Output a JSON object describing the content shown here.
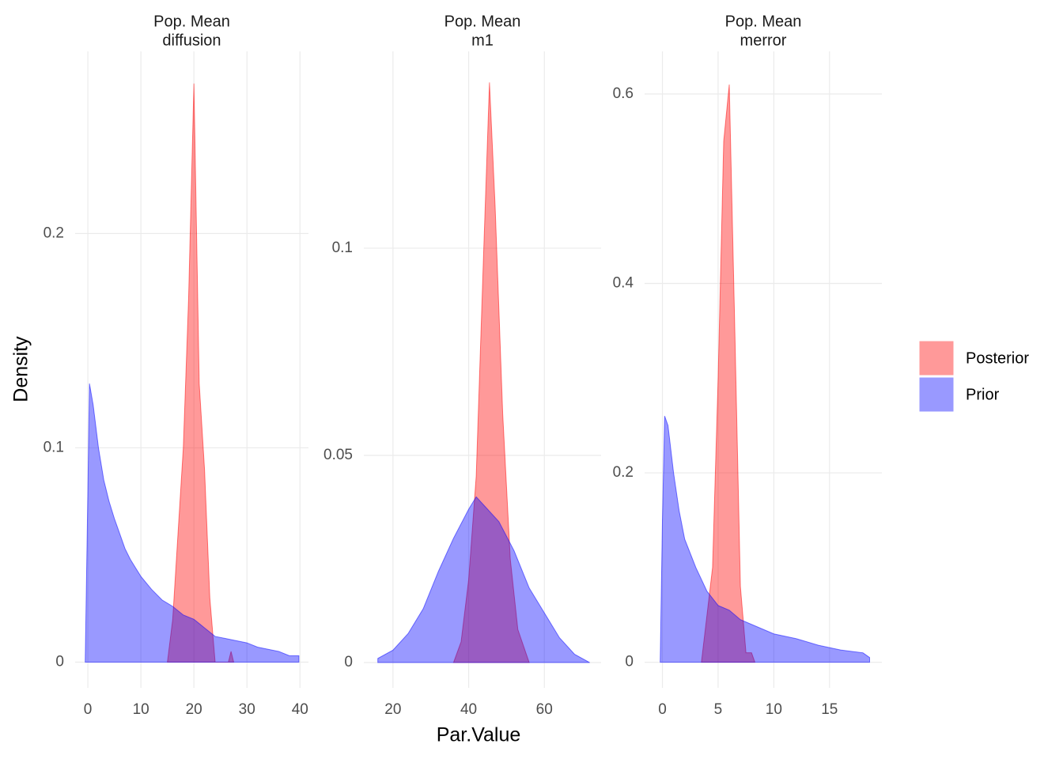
{
  "chart_data": [
    {
      "type": "area",
      "title": [
        "Pop. Mean",
        "diffusion"
      ],
      "ylabel": "Density",
      "xlim": [
        -2.4,
        41.6
      ],
      "ylim": [
        -0.012,
        0.285
      ],
      "xticks": [
        0,
        10,
        20,
        30,
        40
      ],
      "yticks": [
        0.0,
        0.1,
        0.2
      ],
      "grid": true,
      "opacity": 0.4,
      "series": [
        {
          "name": "Posterior",
          "color": "#ff0000",
          "x": [
            15,
            16,
            17,
            18,
            19,
            19.5,
            20,
            20.5,
            21,
            22,
            23,
            24,
            26.5,
            27,
            27.5
          ],
          "values": [
            0,
            0.02,
            0.06,
            0.1,
            0.17,
            0.22,
            0.27,
            0.2,
            0.13,
            0.09,
            0.03,
            0,
            0,
            0.005,
            0
          ]
        },
        {
          "name": "Prior",
          "color": "#0000ff",
          "x": [
            -0.5,
            0,
            0.3,
            1,
            2,
            3,
            4,
            5,
            6,
            7,
            8,
            9,
            10,
            12,
            14,
            16,
            18,
            20,
            22,
            24,
            26,
            28,
            30,
            32,
            34,
            36,
            38,
            39.8
          ],
          "values": [
            0,
            0.08,
            0.13,
            0.12,
            0.1,
            0.085,
            0.075,
            0.067,
            0.06,
            0.053,
            0.048,
            0.044,
            0.04,
            0.034,
            0.029,
            0.026,
            0.022,
            0.02,
            0.016,
            0.012,
            0.011,
            0.01,
            0.009,
            0.007,
            0.006,
            0.005,
            0.003,
            0.003
          ]
        }
      ]
    },
    {
      "type": "area",
      "title": [
        "Pop. Mean",
        "m1"
      ],
      "xlabel": "Par.Value",
      "xlim": [
        12.3,
        75
      ],
      "ylim": [
        -0.0061,
        0.1475
      ],
      "xticks": [
        20,
        40,
        60
      ],
      "yticks": [
        0.0,
        0.05,
        0.1
      ],
      "grid": true,
      "opacity": 0.4,
      "series": [
        {
          "name": "Posterior",
          "color": "#ff0000",
          "x": [
            36,
            38,
            40,
            42,
            44,
            45.5,
            47,
            49,
            51,
            53,
            56
          ],
          "values": [
            0,
            0.005,
            0.02,
            0.045,
            0.1,
            0.14,
            0.11,
            0.06,
            0.025,
            0.008,
            0
          ]
        },
        {
          "name": "Prior",
          "color": "#0000ff",
          "x": [
            16,
            20,
            24,
            28,
            32,
            36,
            40,
            42,
            44,
            48,
            52,
            56,
            60,
            64,
            68,
            72
          ],
          "values": [
            0.001,
            0.003,
            0.007,
            0.013,
            0.022,
            0.03,
            0.037,
            0.04,
            0.038,
            0.034,
            0.027,
            0.018,
            0.012,
            0.006,
            0.002,
            0
          ]
        }
      ]
    },
    {
      "type": "area",
      "title": [
        "Pop. Mean",
        "merror"
      ],
      "xlim": [
        -1.6,
        19.7
      ],
      "ylim": [
        -0.027,
        0.645
      ],
      "xticks": [
        0,
        5,
        10,
        15
      ],
      "yticks": [
        0.0,
        0.2,
        0.4,
        0.6
      ],
      "grid": true,
      "opacity": 0.4,
      "series": [
        {
          "name": "Posterior",
          "color": "#ff0000",
          "x": [
            3.5,
            4,
            4.5,
            5,
            5.5,
            6,
            6.5,
            7,
            7.5,
            8,
            8.3
          ],
          "values": [
            0,
            0.05,
            0.1,
            0.3,
            0.55,
            0.61,
            0.35,
            0.08,
            0.01,
            0.01,
            0
          ]
        },
        {
          "name": "Prior",
          "color": "#0000ff",
          "x": [
            -0.2,
            0,
            0.2,
            0.5,
            1,
            1.5,
            2,
            3,
            4,
            5,
            6,
            7,
            8,
            10,
            12,
            14,
            16,
            18,
            18.6
          ],
          "values": [
            0,
            0.15,
            0.26,
            0.25,
            0.2,
            0.16,
            0.13,
            0.1,
            0.075,
            0.06,
            0.055,
            0.045,
            0.04,
            0.03,
            0.025,
            0.018,
            0.013,
            0.01,
            0.005
          ]
        }
      ]
    }
  ]
}
